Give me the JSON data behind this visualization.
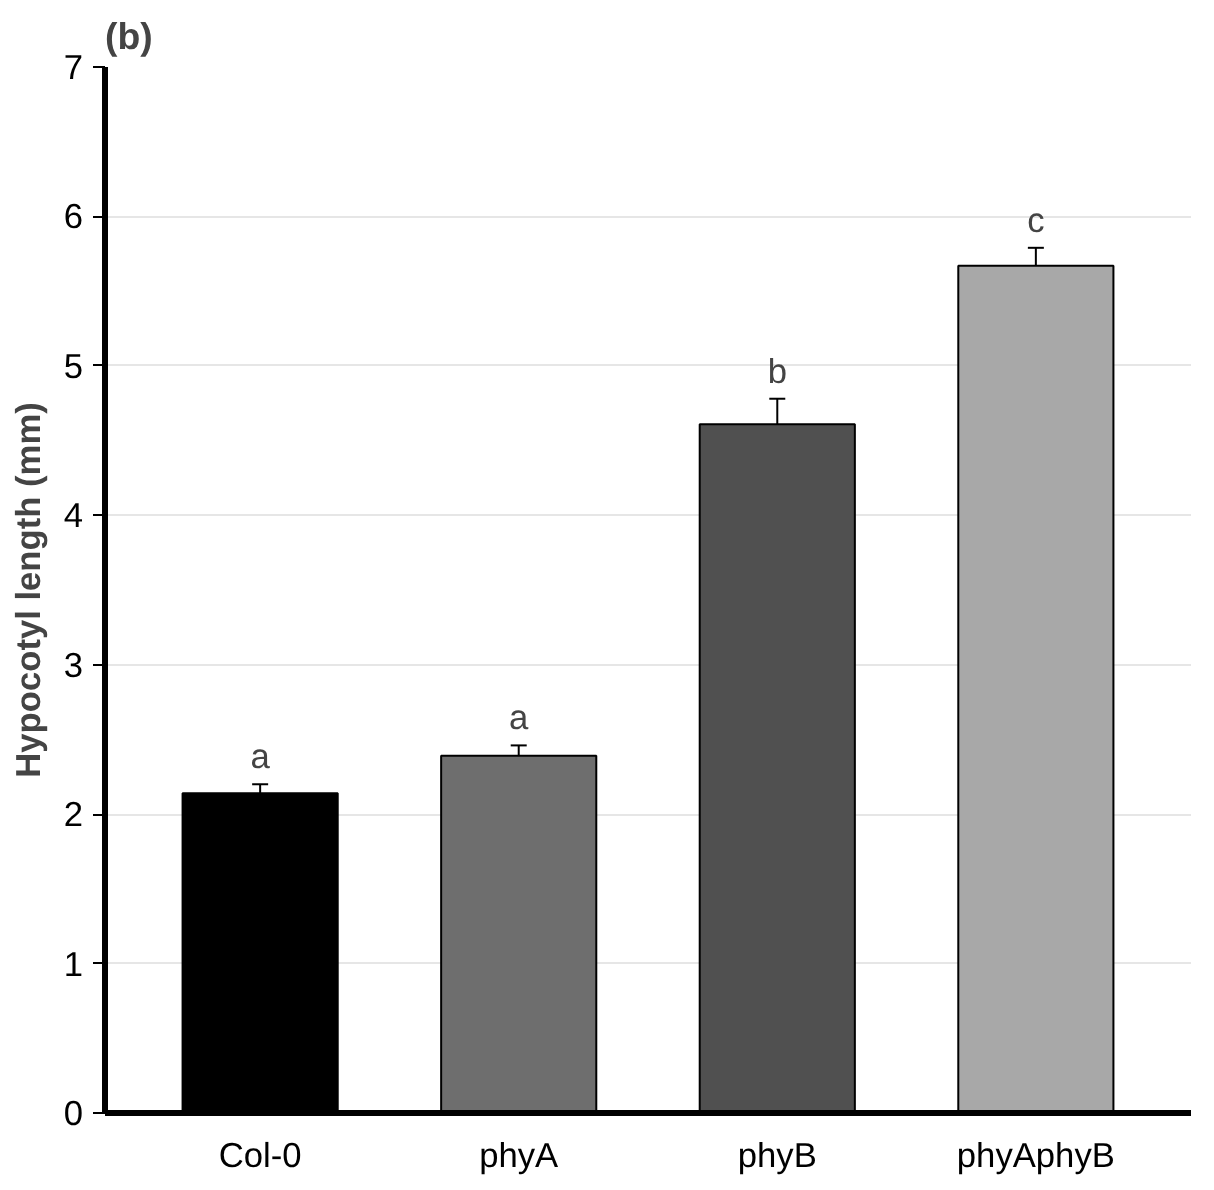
{
  "chart_data": {
    "type": "bar",
    "title": "(b)",
    "ylabel": "Hypocotyl length (mm)",
    "categories": [
      "Col-0",
      "phyA",
      "phyB",
      "phyAphyB"
    ],
    "values": [
      2.14,
      2.39,
      4.61,
      5.67
    ],
    "errors": [
      0.06,
      0.07,
      0.17,
      0.12
    ],
    "colors": [
      "#000000",
      "#6e6e6e",
      "#505050",
      "#a8a8a8"
    ],
    "ylim": [
      0,
      7
    ],
    "yticks": [
      0,
      1,
      2,
      3,
      4,
      5,
      6,
      7
    ],
    "grid": "y",
    "annotations": [
      {
        "text": "a",
        "x": "Col-0",
        "y": 2.2
      },
      {
        "text": "a",
        "x": "phyA",
        "y": 2.46
      },
      {
        "text": "b",
        "x": "phyB",
        "y": 4.78
      },
      {
        "text": "c",
        "x": "phyAphyB",
        "y": 5.79
      }
    ]
  }
}
